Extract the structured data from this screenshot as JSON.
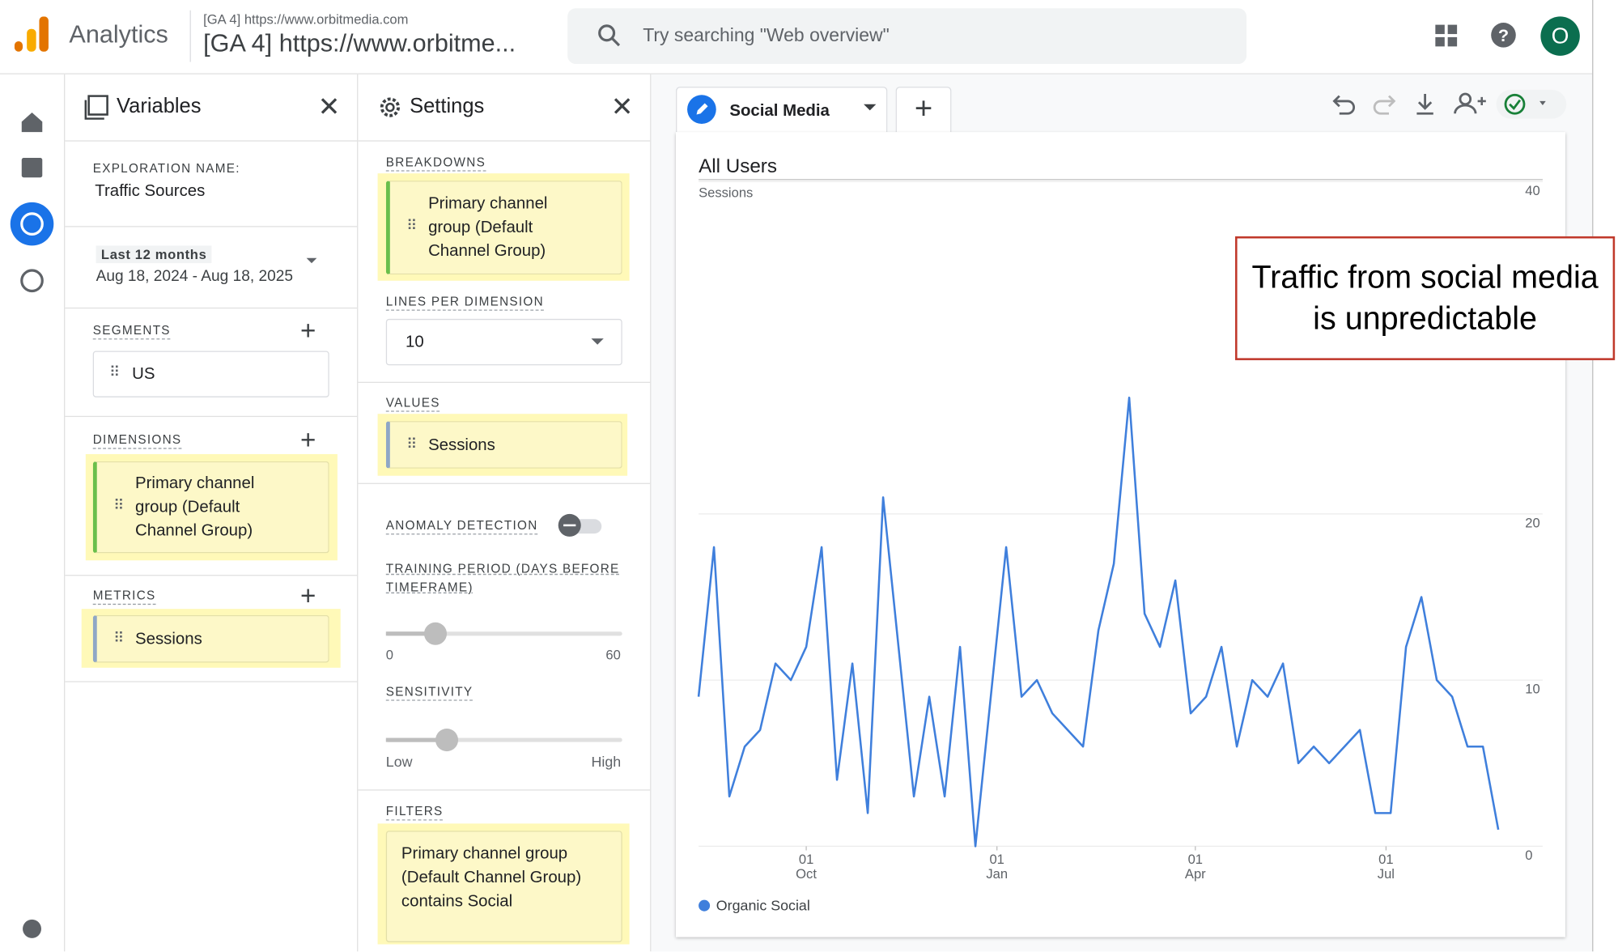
{
  "header": {
    "logo_text": "Analytics",
    "property_small": "[GA 4] https://www.orbitmedia.com",
    "property_large": "[GA 4] https://www.orbitme...",
    "search_placeholder": "Try searching \"Web overview\"",
    "avatar": "O"
  },
  "variables": {
    "title": "Variables",
    "exploration_label": "EXPLORATION NAME:",
    "exploration_name": "Traffic Sources",
    "date_chip": "Last 12 months",
    "date_range": "Aug 18, 2024 - Aug 18, 2025",
    "segments_label": "SEGMENTS",
    "segments": [
      "US"
    ],
    "dimensions_label": "DIMENSIONS",
    "dimensions": [
      "Primary channel group (Default Channel Group)"
    ],
    "metrics_label": "METRICS",
    "metrics": [
      "Sessions"
    ]
  },
  "settings": {
    "title": "Settings",
    "breakdowns_label": "BREAKDOWNS",
    "breakdowns": [
      "Primary channel group (Default Channel Group)"
    ],
    "lines_label": "LINES PER DIMENSION",
    "lines_value": "10",
    "values_label": "VALUES",
    "values": [
      "Sessions"
    ],
    "anomaly_label": "ANOMALY DETECTION",
    "training_label": "TRAINING PERIOD (DAYS BEFORE TIMEFRAME)",
    "training_min": "0",
    "training_max": "60",
    "sensitivity_label": "SENSITIVITY",
    "sensitivity_low": "Low",
    "sensitivity_high": "High",
    "filters_label": "FILTERS",
    "filters": [
      "Primary channel group (Default Channel Group) contains Social"
    ]
  },
  "tab": "Social Media",
  "chart_data": {
    "type": "line",
    "title": "All Users",
    "y_label": "Sessions",
    "annotation": "Traffic from social media is unpredictable",
    "series": [
      {
        "name": "Organic Social",
        "color": "#3f7fdc",
        "values": [
          9,
          18,
          3,
          6,
          7,
          11,
          10,
          12,
          18,
          4,
          11,
          2,
          21,
          12,
          3,
          9,
          3,
          12,
          0,
          9,
          18,
          9,
          10,
          8,
          7,
          6,
          13,
          17,
          27,
          14,
          12,
          16,
          8,
          9,
          12,
          6,
          10,
          9,
          11,
          5,
          6,
          5,
          6,
          7,
          2,
          2,
          12,
          15,
          10,
          9,
          6,
          6,
          1
        ]
      }
    ],
    "xlim": [
      0,
      52
    ],
    "xticks": [
      {
        "value": 7,
        "label": "01\nOct"
      },
      {
        "value": 19.4,
        "label": "01\nJan"
      },
      {
        "value": 32.3,
        "label": "01\nApr"
      },
      {
        "value": 44.7,
        "label": "01\nJul"
      }
    ],
    "ylim": [
      0,
      40
    ],
    "yticks": [
      0,
      10,
      20,
      40
    ],
    "grid": true
  }
}
